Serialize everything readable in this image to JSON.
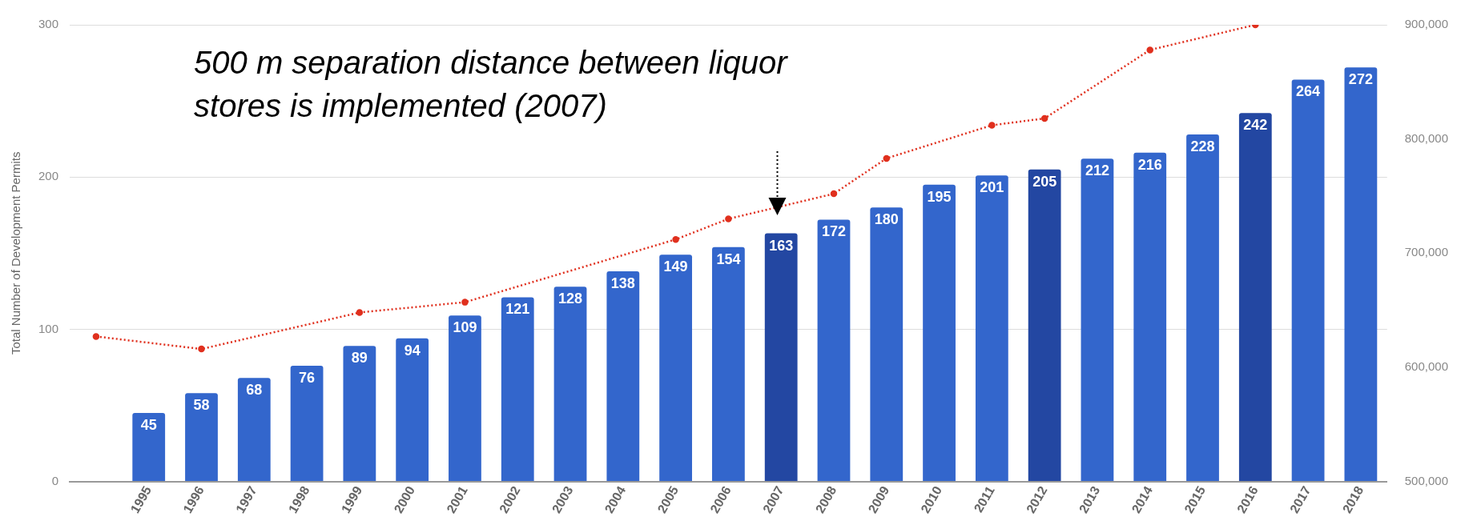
{
  "chart_data": {
    "type": "bar",
    "ylabel": "Total Number of Development Permits",
    "categories": [
      null,
      "1995",
      "1996",
      "1997",
      "1998",
      "1999",
      "2000",
      "2001",
      "2002",
      "2003",
      "2004",
      "2005",
      "2006",
      "2007",
      "2008",
      "2009",
      "2010",
      "2011",
      "2012",
      "2013",
      "2014",
      "2015",
      "2016",
      "2017",
      "2018"
    ],
    "series": [
      {
        "value_labels": [
          null,
          "45",
          "58",
          "68",
          "76",
          "89",
          "94",
          "109",
          "121",
          "128",
          "138",
          "149",
          "154",
          "163",
          "172",
          "180",
          "195",
          "201",
          "205",
          "212",
          "216",
          "228",
          "242",
          "264",
          "272"
        ],
        "colors": [
          "#3366cc",
          "#3366cc",
          "#3366cc",
          "#3366cc",
          "#3366cc",
          "#3366cc",
          "#3366cc",
          "#3366cc",
          "#3366cc",
          "#3366cc",
          "#3366cc",
          "#3366cc",
          "#3366cc",
          "#2347a2",
          "#3366cc",
          "#3366cc",
          "#3366cc",
          "#3366cc",
          "#2347a2",
          "#3366cc",
          "#3366cc",
          "#3366cc",
          "#2347a2",
          "#3366cc",
          "#3366cc"
        ],
        "values": [
          null,
          45,
          58,
          68,
          76,
          89,
          94,
          109,
          121,
          128,
          138,
          149,
          154,
          163,
          172,
          180,
          195,
          201,
          205,
          212,
          216,
          228,
          242,
          264,
          272
        ]
      },
      {
        "type": "line",
        "axis": "y2",
        "color": "#e0301e",
        "values": [
          627000,
          null,
          616000,
          null,
          null,
          648000,
          null,
          657000,
          null,
          null,
          null,
          712000,
          730000,
          null,
          752000,
          783000,
          null,
          812000,
          818000,
          null,
          878000,
          null,
          900000,
          null,
          null
        ]
      }
    ],
    "ylim": [
      0,
      300
    ],
    "yticks": [
      0,
      100,
      200,
      300
    ],
    "y2lim": [
      500000,
      900000
    ],
    "y2ticks": [
      {
        "value": 500000,
        "label": "500,000"
      },
      {
        "value": 600000,
        "label": "600,000"
      },
      {
        "value": 700000,
        "label": "700,000"
      },
      {
        "value": 800000,
        "label": "800,000"
      },
      {
        "value": 900000,
        "label": "900,000"
      }
    ],
    "grid": "y",
    "legend": false,
    "marker": "circle",
    "line_style": "dotted",
    "annotations": [
      "500 m separation distance between liquor stores is implemented (2007)"
    ]
  }
}
